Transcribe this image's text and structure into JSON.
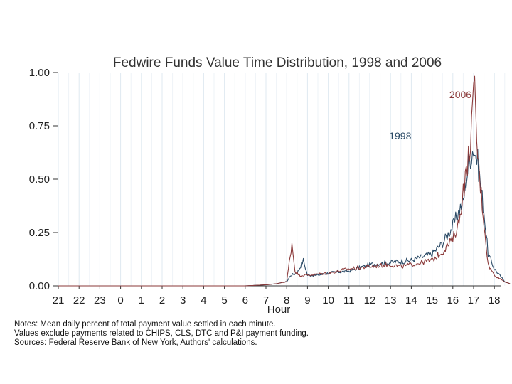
{
  "chart_data": {
    "type": "line",
    "title": "Fedwire Funds Value Time Distribution, 1998 and 2006",
    "xlabel": "Hour",
    "ylabel": "",
    "x_ticks": [
      "21",
      "22",
      "23",
      "0",
      "1",
      "2",
      "3",
      "4",
      "5",
      "6",
      "7",
      "8",
      "9",
      "10",
      "11",
      "12",
      "13",
      "14",
      "15",
      "16",
      "17",
      "18"
    ],
    "x_range_hours_from_21": [
      0,
      21.75
    ],
    "y_ticks": [
      0.0,
      0.25,
      0.5,
      0.75,
      1.0
    ],
    "y_tick_labels": [
      "0.00",
      "0.25",
      "0.50",
      "0.75",
      "1.00"
    ],
    "ylim": [
      0,
      1
    ],
    "grid": "vertical",
    "series": [
      {
        "name": "1998",
        "color": "#2a4a66",
        "label_anchor_hour": 17.0,
        "label_anchor_value": 0.67,
        "points": [
          [
            0,
            0.0
          ],
          [
            9.0,
            0.0
          ],
          [
            10.0,
            0.005
          ],
          [
            10.5,
            0.01
          ],
          [
            11.0,
            0.02
          ],
          [
            11.2,
            0.05
          ],
          [
            11.5,
            0.06
          ],
          [
            11.8,
            0.12
          ],
          [
            12.0,
            0.05
          ],
          [
            12.5,
            0.05
          ],
          [
            13.0,
            0.06
          ],
          [
            14.0,
            0.07
          ],
          [
            15.0,
            0.1
          ],
          [
            16.0,
            0.11
          ],
          [
            17.0,
            0.12
          ],
          [
            18.0,
            0.15
          ],
          [
            18.5,
            0.2
          ],
          [
            19.0,
            0.28
          ],
          [
            19.5,
            0.4
          ],
          [
            19.8,
            0.6
          ],
          [
            20.0,
            0.65
          ],
          [
            20.2,
            0.58
          ],
          [
            20.5,
            0.35
          ],
          [
            20.7,
            0.15
          ],
          [
            21.0,
            0.08
          ],
          [
            21.5,
            0.02
          ],
          [
            21.75,
            0.01
          ]
        ]
      },
      {
        "name": "2006",
        "color": "#8b3a3a",
        "label_anchor_hour": 19.9,
        "label_anchor_value": 0.92,
        "points": [
          [
            0,
            0.0
          ],
          [
            9.0,
            0.0
          ],
          [
            10.0,
            0.005
          ],
          [
            10.5,
            0.01
          ],
          [
            11.0,
            0.02
          ],
          [
            11.25,
            0.2
          ],
          [
            11.4,
            0.07
          ],
          [
            11.6,
            0.05
          ],
          [
            12.0,
            0.05
          ],
          [
            13.0,
            0.06
          ],
          [
            14.0,
            0.08
          ],
          [
            15.0,
            0.09
          ],
          [
            16.0,
            0.1
          ],
          [
            16.5,
            0.09
          ],
          [
            17.0,
            0.1
          ],
          [
            18.0,
            0.12
          ],
          [
            18.5,
            0.16
          ],
          [
            19.0,
            0.22
          ],
          [
            19.3,
            0.3
          ],
          [
            19.5,
            0.45
          ],
          [
            19.7,
            0.55
          ],
          [
            19.9,
            0.75
          ],
          [
            20.05,
            0.92
          ],
          [
            20.2,
            0.6
          ],
          [
            20.5,
            0.3
          ],
          [
            20.7,
            0.1
          ],
          [
            21.0,
            0.05
          ],
          [
            21.5,
            0.02
          ],
          [
            21.75,
            0.01
          ]
        ]
      }
    ]
  },
  "notes": {
    "line1": "Notes: Mean daily percent of total payment value settled in each minute.",
    "line2": "Values exclude payments related to CHIPS, CLS, DTC and P&I payment funding.",
    "line3": "Sources: Federal Reserve Bank of New York, Authors' calculations."
  }
}
